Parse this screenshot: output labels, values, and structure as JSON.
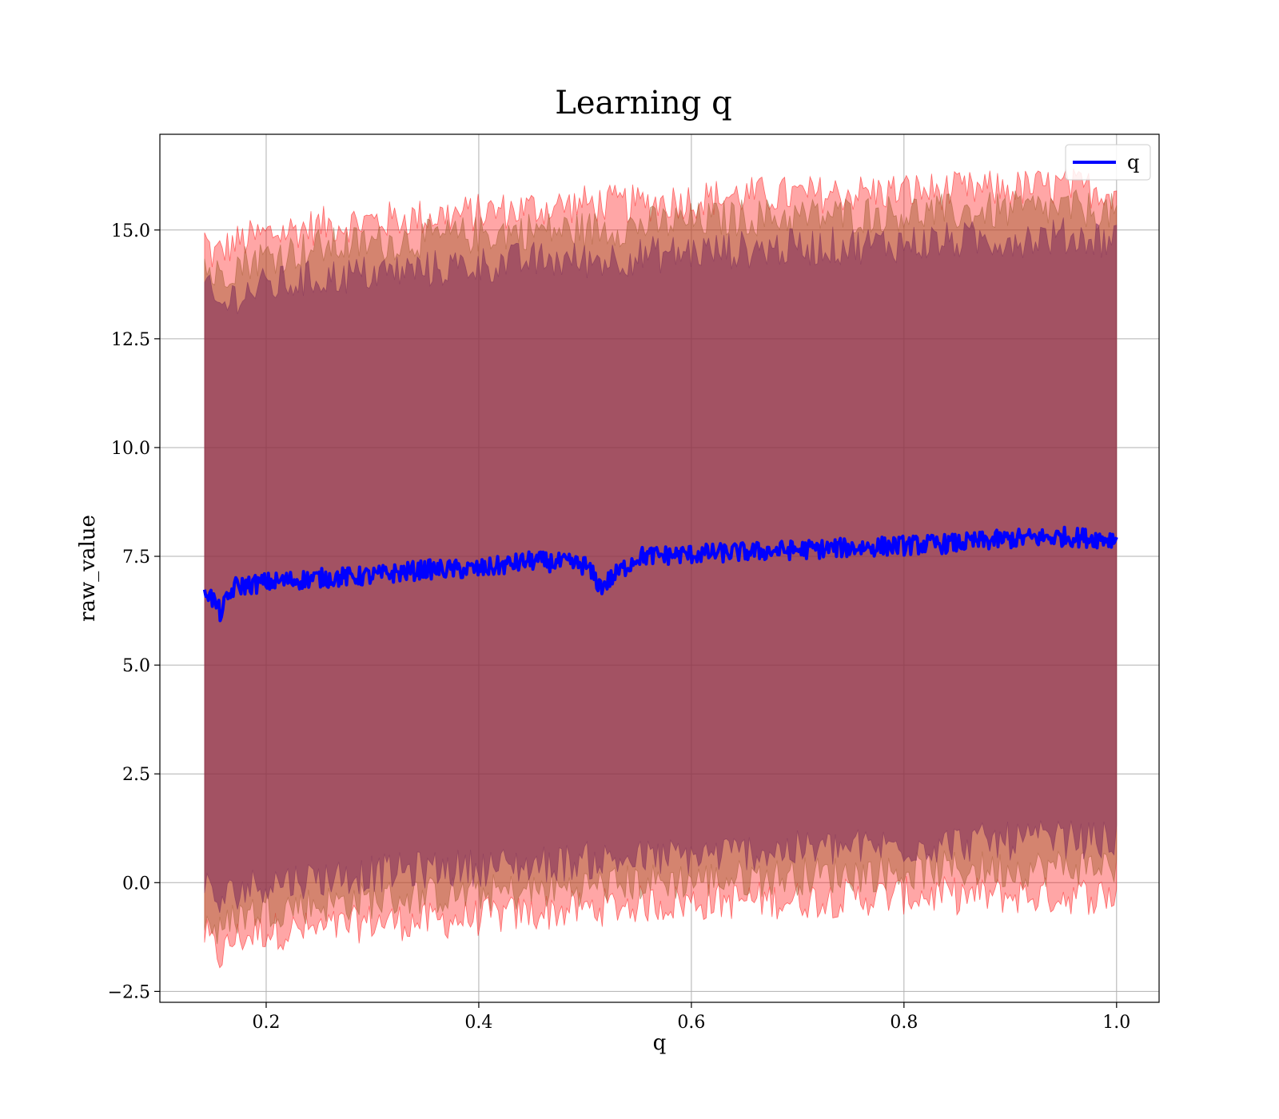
{
  "chart_data": {
    "type": "line",
    "title": "Learning q",
    "xlabel": "q",
    "ylabel": "raw_value",
    "xlim": [
      0.1,
      1.04
    ],
    "ylim": [
      -2.75,
      17.2
    ],
    "xticks": [
      0.2,
      0.4,
      0.6,
      0.8,
      1.0
    ],
    "xtick_labels": [
      "0.2",
      "0.4",
      "0.6",
      "0.8",
      "1.0"
    ],
    "yticks": [
      -2.5,
      0.0,
      2.5,
      5.0,
      7.5,
      10.0,
      12.5,
      15.0
    ],
    "ytick_labels": [
      "−2.5",
      "0.0",
      "2.5",
      "5.0",
      "7.5",
      "10.0",
      "12.5",
      "15.0"
    ],
    "grid": true,
    "legend_position": "top-right",
    "colors": {
      "line": "#0000ff",
      "band_outer": "#ff0000",
      "band_mid": "#a05a2c",
      "band_inner": "#7a2a5a"
    },
    "series": [
      {
        "name": "q",
        "x": [
          0.142,
          0.15,
          0.157,
          0.17,
          0.2,
          0.25,
          0.3,
          0.35,
          0.4,
          0.45,
          0.5,
          0.515,
          0.55,
          0.6,
          0.65,
          0.7,
          0.75,
          0.8,
          0.85,
          0.9,
          0.95,
          1.0
        ],
        "y": [
          6.8,
          6.5,
          6.2,
          6.8,
          6.9,
          7.0,
          7.05,
          7.2,
          7.2,
          7.4,
          7.3,
          6.8,
          7.5,
          7.55,
          7.6,
          7.65,
          7.7,
          7.75,
          7.8,
          7.9,
          7.95,
          7.9
        ]
      }
    ],
    "bands": [
      {
        "x": [
          0.142,
          0.15,
          0.157,
          0.17,
          0.2,
          0.25,
          0.3,
          0.35,
          0.4,
          0.45,
          0.5,
          0.55,
          0.6,
          0.65,
          0.7,
          0.75,
          0.8,
          0.85,
          0.9,
          0.95,
          1.0
        ],
        "lower": [
          -1.2,
          -1.5,
          -1.7,
          -1.3,
          -1.1,
          -1.1,
          -0.9,
          -0.9,
          -0.8,
          -0.7,
          -0.6,
          -0.5,
          -0.45,
          -0.4,
          -0.4,
          -0.35,
          -0.3,
          -0.3,
          -0.3,
          -0.3,
          -0.3
        ],
        "upper": [
          14.8,
          14.4,
          14.5,
          14.7,
          14.9,
          15.1,
          15.2,
          15.3,
          15.4,
          15.5,
          15.6,
          15.6,
          15.7,
          15.8,
          15.8,
          15.85,
          15.9,
          15.9,
          15.95,
          16.0,
          15.9
        ]
      },
      {
        "x": [
          0.142,
          0.15,
          0.157,
          0.17,
          0.2,
          0.25,
          0.3,
          0.35,
          0.4,
          0.45,
          0.5,
          0.55,
          0.6,
          0.65,
          0.7,
          0.75,
          0.8,
          0.85,
          0.9,
          0.95,
          1.0
        ],
        "lower": [
          -0.8,
          -1.0,
          -1.2,
          -0.8,
          -0.6,
          -0.5,
          -0.4,
          -0.3,
          -0.25,
          -0.2,
          -0.1,
          0.0,
          0.05,
          0.1,
          0.15,
          0.2,
          0.25,
          0.3,
          0.3,
          0.35,
          0.4
        ],
        "upper": [
          14.3,
          13.9,
          14.0,
          14.2,
          14.4,
          14.6,
          14.7,
          14.8,
          14.9,
          15.0,
          15.0,
          15.1,
          15.2,
          15.3,
          15.3,
          15.35,
          15.4,
          15.4,
          15.45,
          15.5,
          15.4
        ]
      },
      {
        "x": [
          0.142,
          0.15,
          0.157,
          0.17,
          0.2,
          0.25,
          0.3,
          0.35,
          0.4,
          0.45,
          0.5,
          0.55,
          0.6,
          0.65,
          0.7,
          0.75,
          0.8,
          0.85,
          0.9,
          0.95,
          1.0
        ],
        "lower": [
          -0.1,
          -0.3,
          -0.5,
          -0.2,
          0.0,
          0.1,
          0.2,
          0.3,
          0.35,
          0.4,
          0.5,
          0.55,
          0.6,
          0.7,
          0.75,
          0.8,
          0.85,
          0.9,
          0.95,
          1.0,
          0.95
        ],
        "upper": [
          13.7,
          13.4,
          13.2,
          13.5,
          13.7,
          13.9,
          14.0,
          14.1,
          14.2,
          14.3,
          14.3,
          14.4,
          14.5,
          14.55,
          14.6,
          14.65,
          14.7,
          14.75,
          14.8,
          14.85,
          14.8
        ]
      }
    ]
  }
}
